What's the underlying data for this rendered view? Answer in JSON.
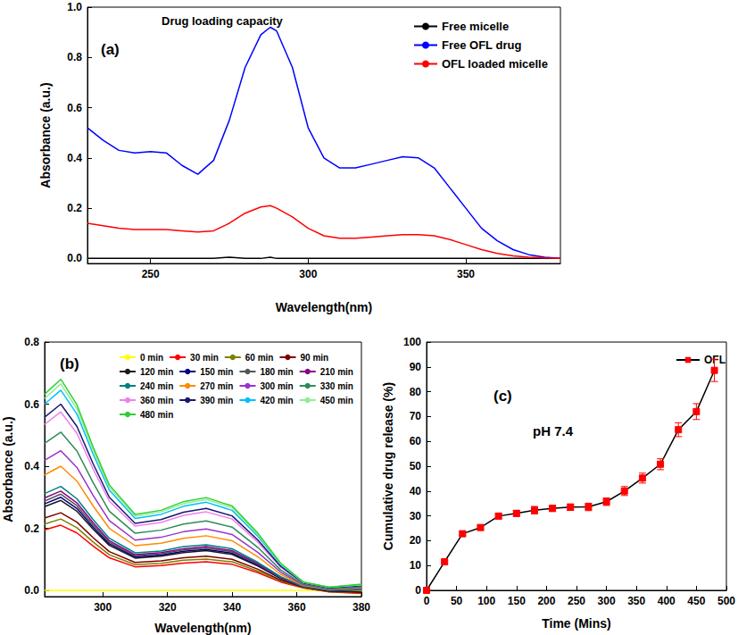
{
  "chart_data": [
    {
      "type": "line",
      "title": "Drug loading capacity",
      "annotations": [
        "(a)"
      ],
      "x_label": "Wavelength(nm)",
      "y_label": "Absorbance (a.u.)",
      "xlim": [
        230,
        380
      ],
      "xticks": [
        250,
        300,
        350
      ],
      "ylim": [
        -0.02,
        1.0
      ],
      "yticks": [
        {
          "value": 0,
          "label": "0.0"
        },
        0.2,
        0.4,
        0.6,
        0.8,
        {
          "value": 1,
          "label": "1.0"
        }
      ],
      "grid": false,
      "legend": "top-right",
      "x": [
        230,
        235,
        240,
        245,
        250,
        255,
        260,
        265,
        270,
        275,
        280,
        285,
        288,
        290,
        295,
        300,
        305,
        310,
        315,
        320,
        325,
        330,
        335,
        340,
        345,
        350,
        355,
        360,
        365,
        370,
        375,
        380
      ],
      "series": [
        {
          "name": "Free micelle",
          "color": "#000000",
          "values": [
            0,
            0,
            0,
            0,
            0,
            0,
            0,
            0,
            0,
            0.005,
            0,
            0,
            0.005,
            0,
            0,
            0,
            0,
            0,
            0,
            0,
            0,
            0,
            0,
            0,
            0,
            0,
            0,
            0,
            0,
            0,
            0,
            0
          ]
        },
        {
          "name": "Free OFL drug",
          "color": "#0000ff",
          "values": [
            0.52,
            0.47,
            0.43,
            0.42,
            0.425,
            0.42,
            0.37,
            0.335,
            0.39,
            0.55,
            0.76,
            0.89,
            0.92,
            0.905,
            0.76,
            0.52,
            0.4,
            0.36,
            0.36,
            0.375,
            0.39,
            0.405,
            0.4,
            0.36,
            0.28,
            0.2,
            0.12,
            0.07,
            0.035,
            0.015,
            0.005,
            0
          ]
        },
        {
          "name": "OFL loaded micelle",
          "color": "#ff0000",
          "values": [
            0.14,
            0.13,
            0.12,
            0.115,
            0.115,
            0.115,
            0.11,
            0.105,
            0.11,
            0.14,
            0.18,
            0.205,
            0.21,
            0.2,
            0.165,
            0.12,
            0.09,
            0.08,
            0.08,
            0.085,
            0.09,
            0.095,
            0.095,
            0.09,
            0.075,
            0.055,
            0.035,
            0.02,
            0.01,
            0.005,
            0.002,
            0
          ]
        }
      ]
    },
    {
      "type": "line",
      "annotations": [
        "(b)"
      ],
      "x_label": "Wavelength(nm)",
      "y_label": "Absorbance (a.u.)",
      "xlim": [
        282,
        380
      ],
      "xticks": [
        300,
        320,
        340,
        360,
        380
      ],
      "ylim": [
        -0.02,
        0.8
      ],
      "yticks": [
        {
          "value": 0,
          "label": "0.0"
        },
        0.2,
        0.4,
        0.6,
        0.8
      ],
      "grid": false,
      "legend": "top-right",
      "x": [
        282,
        287,
        292,
        297,
        302,
        310,
        318,
        325,
        332,
        340,
        348,
        355,
        362,
        370,
        380
      ],
      "series": [
        {
          "name": "0 min",
          "color": "#ffff00",
          "values": [
            0,
            0,
            0,
            0,
            0,
            0,
            0,
            0,
            0,
            0,
            0,
            0,
            0,
            0,
            0
          ]
        },
        {
          "name": "30 min",
          "color": "#ff0000",
          "values": [
            0.195,
            0.21,
            0.185,
            0.143,
            0.105,
            0.076,
            0.08,
            0.088,
            0.092,
            0.084,
            0.057,
            0.027,
            0.008,
            -0.005,
            -0.01
          ]
        },
        {
          "name": "60 min",
          "color": "#808000",
          "values": [
            0.214,
            0.23,
            0.202,
            0.156,
            0.115,
            0.083,
            0.087,
            0.097,
            0.101,
            0.092,
            0.062,
            0.03,
            0.009,
            -0.004,
            -0.008
          ]
        },
        {
          "name": "90 min",
          "color": "#800000",
          "values": [
            0.233,
            0.25,
            0.22,
            0.17,
            0.125,
            0.09,
            0.095,
            0.105,
            0.11,
            0.1,
            0.068,
            0.033,
            0.01,
            -0.003,
            -0.006
          ]
        },
        {
          "name": "120 min",
          "color": "#1a1a1a",
          "values": [
            0.27,
            0.29,
            0.255,
            0.197,
            0.145,
            0.104,
            0.11,
            0.122,
            0.128,
            0.116,
            0.078,
            0.038,
            0.012,
            -0.002,
            -0.004
          ]
        },
        {
          "name": "150 min",
          "color": "#000080",
          "values": [
            0.279,
            0.3,
            0.264,
            0.204,
            0.15,
            0.108,
            0.114,
            0.126,
            0.132,
            0.12,
            0.081,
            0.039,
            0.012,
            0,
            0.002
          ]
        },
        {
          "name": "180 min",
          "color": "#555555",
          "values": [
            0.288,
            0.31,
            0.273,
            0.211,
            0.155,
            0.112,
            0.118,
            0.13,
            0.136,
            0.124,
            0.084,
            0.04,
            0.012,
            0,
            0.002
          ]
        },
        {
          "name": "210 min",
          "color": "#8b008b",
          "values": [
            0.298,
            0.32,
            0.282,
            0.218,
            0.16,
            0.115,
            0.122,
            0.134,
            0.141,
            0.128,
            0.086,
            0.042,
            0.013,
            0.001,
            0.003
          ]
        },
        {
          "name": "240 min",
          "color": "#008080",
          "values": [
            0.312,
            0.335,
            0.295,
            0.228,
            0.168,
            0.121,
            0.127,
            0.141,
            0.147,
            0.134,
            0.09,
            0.044,
            0.013,
            0.001,
            0.004
          ]
        },
        {
          "name": "270 min",
          "color": "#ff8c00",
          "values": [
            0.372,
            0.4,
            0.352,
            0.272,
            0.2,
            0.144,
            0.152,
            0.168,
            0.176,
            0.16,
            0.108,
            0.052,
            0.016,
            0.004,
            0.008
          ]
        },
        {
          "name": "300 min",
          "color": "#9932cc",
          "values": [
            0.419,
            0.45,
            0.396,
            0.306,
            0.225,
            0.162,
            0.171,
            0.189,
            0.198,
            0.18,
            0.122,
            0.059,
            0.018,
            0.005,
            0.01
          ]
        },
        {
          "name": "330 min",
          "color": "#2e8b57",
          "values": [
            0.474,
            0.51,
            0.449,
            0.347,
            0.255,
            0.184,
            0.194,
            0.214,
            0.224,
            0.204,
            0.138,
            0.066,
            0.02,
            0.006,
            0.012
          ]
        },
        {
          "name": "360 min",
          "color": "#ee82ee",
          "values": [
            0.535,
            0.575,
            0.506,
            0.391,
            0.288,
            0.207,
            0.219,
            0.242,
            0.253,
            0.23,
            0.155,
            0.075,
            0.023,
            0.008,
            0.015
          ]
        },
        {
          "name": "390 min",
          "color": "#191970",
          "values": [
            0.558,
            0.6,
            0.528,
            0.408,
            0.3,
            0.216,
            0.228,
            0.252,
            0.264,
            0.24,
            0.162,
            0.078,
            0.024,
            0.008,
            0.015
          ]
        },
        {
          "name": "420 min",
          "color": "#00bfff",
          "values": [
            0.6,
            0.645,
            0.568,
            0.439,
            0.323,
            0.232,
            0.245,
            0.271,
            0.284,
            0.258,
            0.174,
            0.084,
            0.026,
            0.01,
            0.018
          ]
        },
        {
          "name": "450 min",
          "color": "#90ee90",
          "values": [
            0.618,
            0.665,
            0.585,
            0.452,
            0.333,
            0.239,
            0.253,
            0.279,
            0.293,
            0.266,
            0.18,
            0.086,
            0.027,
            0.01,
            0.018
          ]
        },
        {
          "name": "480 min",
          "color": "#32cd32",
          "values": [
            0.632,
            0.68,
            0.598,
            0.462,
            0.34,
            0.245,
            0.258,
            0.286,
            0.299,
            0.272,
            0.184,
            0.088,
            0.027,
            0.01,
            0.02
          ]
        }
      ]
    },
    {
      "type": "line",
      "annotations": [
        "(c)",
        "pH 7.4"
      ],
      "x_label": "Time (Mins)",
      "y_label": "Cumulative drug release (%)",
      "xlim": [
        0,
        500
      ],
      "xticks": [
        0,
        50,
        100,
        150,
        200,
        250,
        300,
        350,
        400,
        450,
        500
      ],
      "ylim": [
        0,
        100
      ],
      "yticks": [
        0,
        10,
        20,
        30,
        40,
        50,
        60,
        70,
        80,
        90,
        100
      ],
      "grid": false,
      "legend": "top-right",
      "x": [
        0,
        30,
        60,
        90,
        120,
        150,
        180,
        210,
        240,
        270,
        300,
        330,
        360,
        390,
        420,
        450,
        480
      ],
      "series": [
        {
          "name": "OFL",
          "color": "#ff0000",
          "marker": "square",
          "values": [
            0,
            11.5,
            22.8,
            25.3,
            29.9,
            31,
            32.3,
            33,
            33.5,
            33.6,
            35.7,
            40,
            45.2,
            50.8,
            64.7,
            72,
            88.6
          ],
          "errors": [
            0,
            0.5,
            0.8,
            0.9,
            1,
            1.2,
            1.5,
            1.2,
            1.3,
            1.5,
            1.5,
            1.8,
            2,
            2.2,
            2.8,
            3.2,
            4.5
          ]
        }
      ]
    }
  ]
}
